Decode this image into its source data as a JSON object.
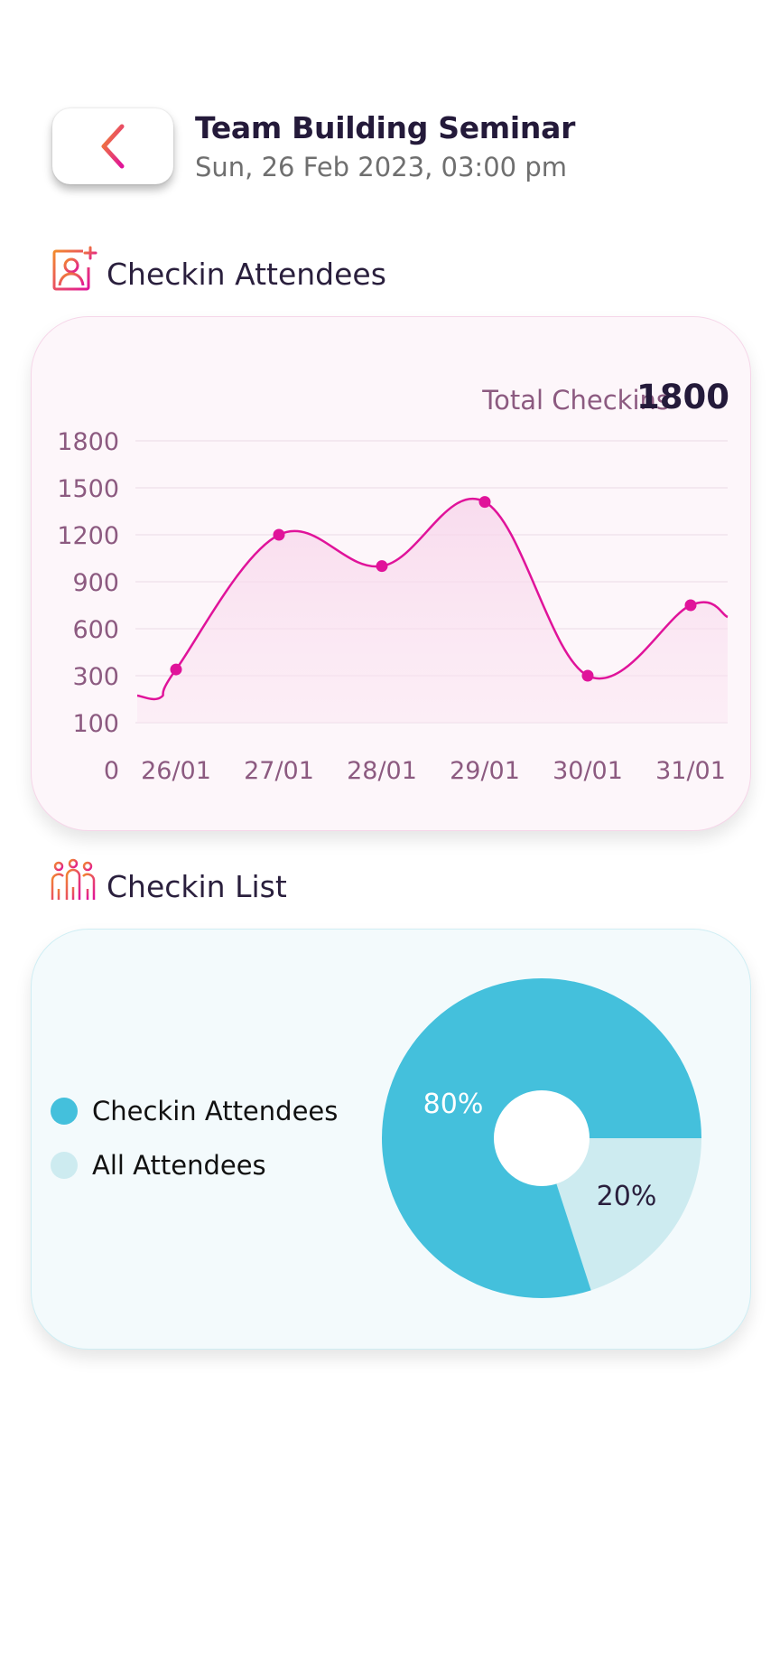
{
  "header": {
    "title": "Team Building Seminar",
    "subtitle": "Sun, 26 Feb 2023, 03:00 pm"
  },
  "icons": {
    "back": "chevron-left-icon",
    "checkin_attendees": "user-plus-icon",
    "checkin_list": "group-icon"
  },
  "colors": {
    "accent_gradient": [
      "#f28a2b",
      "#e0139a"
    ],
    "line": "#e0139a",
    "pie_primary": "#44c0dc",
    "pie_secondary": "#cdebf0"
  },
  "sections": {
    "checkin_attendees": "Checkin Attendees",
    "checkin_list": "Checkin List"
  },
  "line_card": {
    "total_label": "Total Checkins",
    "total_value": "1800"
  },
  "legend": {
    "checkin": "Checkin Attendees",
    "all": "All Attendees"
  },
  "chart_data": [
    {
      "type": "line",
      "smooth": true,
      "area_fill": true,
      "y_ticks": [
        "1800",
        "1500",
        "1200",
        "900",
        "600",
        "300",
        "100",
        "0"
      ],
      "x": [
        "26/01",
        "27/01",
        "28/01",
        "29/01",
        "30/01",
        "31/01"
      ],
      "series": [
        {
          "values": [
            340,
            1200,
            1000,
            1410,
            300,
            750
          ]
        }
      ],
      "grid": true
    },
    {
      "type": "pie",
      "donut": true,
      "slices": [
        {
          "label": "80%",
          "value": 80,
          "color": "#44c0dc"
        },
        {
          "label": "20%",
          "value": 20,
          "color": "#cdebf0"
        }
      ]
    }
  ]
}
